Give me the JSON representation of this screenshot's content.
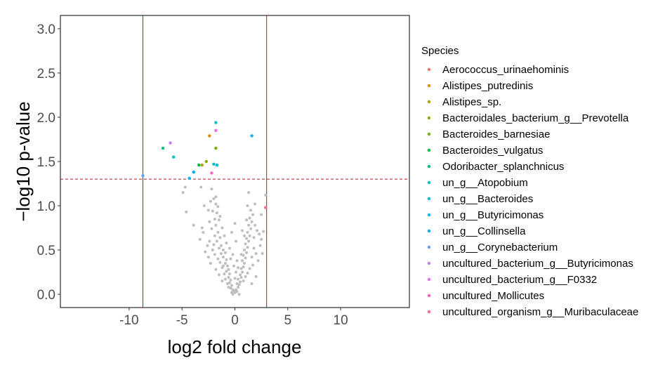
{
  "chart_data": {
    "type": "scatter",
    "title": "",
    "xlabel": "log2 fold change",
    "ylabel": "−log10 p-value",
    "xlim": [
      -16.5,
      16.5
    ],
    "ylim": [
      -0.15,
      3.15
    ],
    "x_ticks": [
      -10,
      -5,
      0,
      5,
      10
    ],
    "x_tick_labels": [
      "-10",
      "-5",
      "0",
      "5",
      "10"
    ],
    "y_ticks": [
      0.0,
      0.5,
      1.0,
      1.5,
      2.0,
      2.5,
      3.0
    ],
    "y_tick_labels": [
      "0.0",
      "0.5",
      "1.0",
      "1.5",
      "2.0",
      "2.5",
      "3.0"
    ],
    "vlines": [
      -8.7,
      3.0
    ],
    "hline": 1.301,
    "line_color": "#b2182b",
    "grid": false,
    "legend_position": "right",
    "legend": {
      "title": "Species",
      "entries": [
        {
          "name": "Aerococcus_urinaehominis",
          "color": "#F8766D"
        },
        {
          "name": "Alistipes_putredinis",
          "color": "#DE8C00"
        },
        {
          "name": "Alistipes_sp.",
          "color": "#B79F00"
        },
        {
          "name": "Bacteroidales_bacterium_g__Prevotella",
          "color": "#9BA400"
        },
        {
          "name": "Bacteroides_barnesiae",
          "color": "#7CAE00"
        },
        {
          "name": "Bacteroides_vulgatus",
          "color": "#00BA38"
        },
        {
          "name": "Odoribacter_splanchnicus",
          "color": "#00BF7D"
        },
        {
          "name": "un_g__Atopobium",
          "color": "#00BFC4"
        },
        {
          "name": "un_g__Bacteroides",
          "color": "#00BCD8"
        },
        {
          "name": "un_g__Butyricimonas",
          "color": "#00B4F0"
        },
        {
          "name": "un_g__Collinsella",
          "color": "#00A9FF"
        },
        {
          "name": "un_g__Corynebacterium",
          "color": "#619CFF"
        },
        {
          "name": "uncultured_bacterium_g__Butyricimonas",
          "color": "#C77CFF"
        },
        {
          "name": "uncultured_bacterium_g__F0332",
          "color": "#E76BF3"
        },
        {
          "name": "uncultured_Mollicutes",
          "color": "#FF61C3"
        },
        {
          "name": "uncultured_organism_g__Muribaculaceae",
          "color": "#FF6C91"
        }
      ]
    },
    "significant_points": [
      {
        "species": "uncultured_organism_g__Muribaculaceae",
        "x": 2.9,
        "y": 0.98
      },
      {
        "species": "un_g__Corynebacterium",
        "x": -8.7,
        "y": 1.34
      },
      {
        "species": "Odoribacter_splanchnicus",
        "x": -6.8,
        "y": 1.65
      },
      {
        "species": "uncultured_bacterium_g__Butyricimonas",
        "x": -6.1,
        "y": 1.71
      },
      {
        "species": "un_g__Atopobium",
        "x": -5.8,
        "y": 1.55
      },
      {
        "species": "un_g__Collinsella",
        "x": -3.9,
        "y": 1.38
      },
      {
        "species": "un_g__Butyricimonas",
        "x": -4.3,
        "y": 1.31
      },
      {
        "species": "Bacteroides_vulgatus",
        "x": -3.4,
        "y": 1.46
      },
      {
        "species": "Alistipes_sp.",
        "x": -3.1,
        "y": 1.46
      },
      {
        "species": "Bacteroidales_bacterium_g__Prevotella",
        "x": -2.7,
        "y": 1.5
      },
      {
        "species": "Alistipes_putredinis",
        "x": -2.4,
        "y": 1.79
      },
      {
        "species": "un_g__Bacteroides",
        "x": -1.8,
        "y": 1.94
      },
      {
        "species": "Bacteroides_barnesiae",
        "x": -1.8,
        "y": 1.65
      },
      {
        "species": "uncultured_bacterium_g__F0332",
        "x": -1.8,
        "y": 1.85
      },
      {
        "species": "uncultured_Mollicutes",
        "x": -2.2,
        "y": 1.37
      },
      {
        "species": "un_g__Atopobium",
        "x": -2.0,
        "y": 1.47
      },
      {
        "species": "un_g__Bacteroides",
        "x": -1.7,
        "y": 1.46
      },
      {
        "species": "un_g__Butyricimonas",
        "x": 1.6,
        "y": 1.79
      }
    ],
    "nonsignificant_color": "#BEBEBE",
    "nonsignificant_points": [
      [
        -4.7,
        1.21
      ],
      [
        -4.9,
        1.15
      ],
      [
        -3.2,
        1.21
      ],
      [
        -2.2,
        1.19
      ],
      [
        -2.0,
        1.08
      ],
      [
        -2.3,
        1.05
      ],
      [
        -1.8,
        1.02
      ],
      [
        -2.1,
        0.94
      ],
      [
        -1.7,
        0.92
      ],
      [
        -1.9,
        0.85
      ],
      [
        -2.4,
        0.82
      ],
      [
        -1.5,
        0.84
      ],
      [
        -1.8,
        0.78
      ],
      [
        -2.2,
        0.74
      ],
      [
        -1.6,
        0.7
      ],
      [
        -1.9,
        0.66
      ],
      [
        -1.4,
        0.64
      ],
      [
        -1.7,
        0.6
      ],
      [
        -2.0,
        0.56
      ],
      [
        -1.3,
        0.55
      ],
      [
        -1.5,
        0.52
      ],
      [
        -1.1,
        0.5
      ],
      [
        -1.3,
        0.46
      ],
      [
        -0.9,
        0.47
      ],
      [
        -1.1,
        0.42
      ],
      [
        -0.8,
        0.39
      ],
      [
        -0.9,
        0.35
      ],
      [
        -0.7,
        0.32
      ],
      [
        -0.6,
        0.28
      ],
      [
        -0.8,
        0.26
      ],
      [
        -0.5,
        0.23
      ],
      [
        -0.6,
        0.19
      ],
      [
        -0.4,
        0.16
      ],
      [
        -0.5,
        0.13
      ],
      [
        -0.3,
        0.1
      ],
      [
        -0.4,
        0.07
      ],
      [
        -0.2,
        0.05
      ],
      [
        -0.3,
        0.02
      ],
      [
        -0.1,
        0.04
      ],
      [
        0.0,
        0.02
      ],
      [
        0.1,
        0.05
      ],
      [
        0.2,
        0.03
      ],
      [
        0.3,
        0.08
      ],
      [
        0.4,
        0.11
      ],
      [
        0.5,
        0.14
      ],
      [
        0.3,
        0.17
      ],
      [
        0.6,
        0.19
      ],
      [
        0.5,
        0.22
      ],
      [
        0.7,
        0.25
      ],
      [
        0.6,
        0.29
      ],
      [
        0.8,
        0.31
      ],
      [
        0.9,
        0.35
      ],
      [
        0.7,
        0.38
      ],
      [
        1.0,
        0.41
      ],
      [
        0.8,
        0.44
      ],
      [
        1.1,
        0.47
      ],
      [
        0.9,
        0.5
      ],
      [
        1.2,
        0.53
      ],
      [
        1.0,
        0.57
      ],
      [
        1.3,
        0.6
      ],
      [
        1.1,
        0.63
      ],
      [
        1.4,
        0.66
      ],
      [
        1.2,
        0.7
      ],
      [
        1.5,
        0.74
      ],
      [
        1.3,
        0.78
      ],
      [
        1.6,
        0.82
      ],
      [
        1.4,
        0.86
      ],
      [
        1.7,
        0.9
      ],
      [
        1.5,
        0.95
      ],
      [
        1.9,
        0.78
      ],
      [
        2.1,
        0.72
      ],
      [
        2.3,
        0.68
      ],
      [
        2.5,
        0.62
      ],
      [
        2.4,
        0.55
      ],
      [
        1.8,
        0.52
      ],
      [
        2.0,
        0.46
      ],
      [
        1.6,
        0.42
      ],
      [
        2.2,
        0.38
      ],
      [
        1.7,
        0.33
      ],
      [
        1.4,
        0.29
      ],
      [
        1.2,
        0.24
      ],
      [
        1.0,
        0.2
      ],
      [
        0.8,
        0.15
      ],
      [
        -0.7,
        0.12
      ],
      [
        -0.9,
        0.17
      ],
      [
        -1.0,
        0.23
      ],
      [
        -1.2,
        0.3
      ],
      [
        -1.4,
        0.36
      ],
      [
        -1.6,
        0.4
      ],
      [
        -1.9,
        0.45
      ],
      [
        -2.1,
        0.5
      ],
      [
        -2.4,
        0.6
      ],
      [
        -2.6,
        0.55
      ],
      [
        -3.0,
        0.7
      ],
      [
        -3.1,
        0.75
      ],
      [
        -4.6,
        0.93
      ],
      [
        -3.9,
        0.78
      ],
      [
        -3.3,
        0.62
      ],
      [
        -2.8,
        0.48
      ],
      [
        -2.5,
        0.42
      ],
      [
        -2.3,
        0.35
      ],
      [
        -1.8,
        0.28
      ],
      [
        -1.5,
        0.22
      ],
      [
        -1.2,
        0.15
      ],
      [
        -0.6,
        0.08
      ],
      [
        0.4,
        0.0
      ],
      [
        -0.2,
        0.0
      ],
      [
        0.2,
        0.12
      ],
      [
        0.0,
        0.18
      ],
      [
        0.1,
        0.25
      ],
      [
        -0.1,
        0.32
      ],
      [
        0.2,
        0.38
      ],
      [
        -0.2,
        0.45
      ],
      [
        0.1,
        0.6
      ],
      [
        -0.3,
        0.7
      ],
      [
        0.0,
        0.8
      ],
      [
        1.2,
        1.0
      ],
      [
        1.3,
        1.15
      ],
      [
        -1.4,
        0.88
      ],
      [
        -1.2,
        0.75
      ],
      [
        -1.0,
        0.66
      ],
      [
        2.6,
        0.46
      ],
      [
        2.7,
        0.71
      ],
      [
        2.5,
        0.9
      ],
      [
        1.9,
        1.02
      ],
      [
        2.0,
        0.2
      ],
      [
        1.6,
        0.12
      ],
      [
        -1.8,
        1.1
      ],
      [
        -2.5,
        0.95
      ],
      [
        -2.9,
        1.0
      ],
      [
        -1.1,
        0.32
      ],
      [
        0.9,
        0.66
      ],
      [
        1.1,
        0.84
      ],
      [
        -0.5,
        0.52
      ],
      [
        0.6,
        0.45
      ],
      [
        -0.8,
        0.58
      ],
      [
        2.9,
        1.12
      ],
      [
        -1.6,
        0.99
      ],
      [
        0.7,
        0.72
      ],
      [
        1.8,
        0.64
      ],
      [
        -0.4,
        0.4
      ],
      [
        0.3,
        0.3
      ]
    ]
  }
}
